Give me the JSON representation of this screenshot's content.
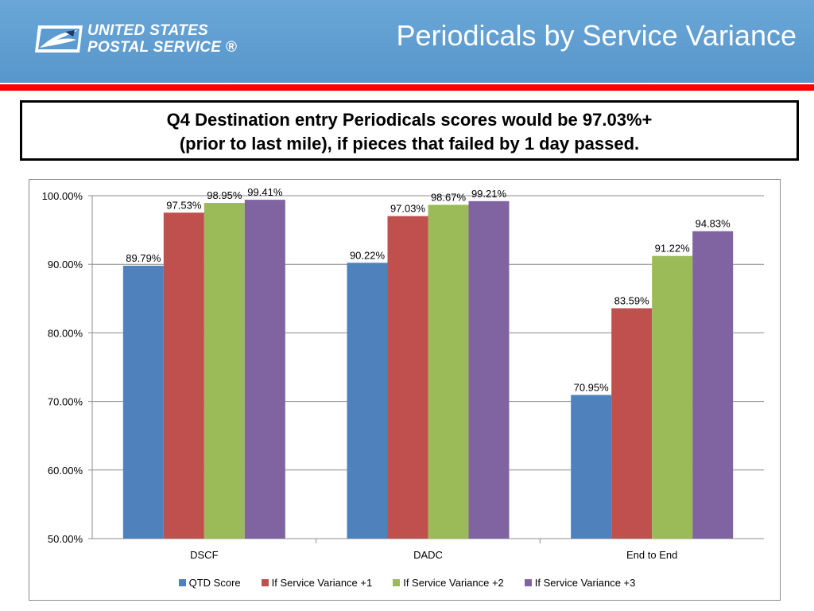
{
  "header": {
    "logo_line1": "UNITED STATES",
    "logo_line2": "POSTAL SERVICE ®",
    "title": "Periodicals by Service Variance",
    "logo_icon": "eagle-icon"
  },
  "callout": {
    "line1": "Q4 Destination entry Periodicals scores would be 97.03%+",
    "line2": "(prior to last mile), if pieces that failed by 1 day passed."
  },
  "colors": {
    "header_bg": "#5b9bd0",
    "accent_bar": "#ff0000"
  },
  "chart_data": {
    "type": "bar",
    "categories": [
      "DSCF",
      "DADC",
      "End to End"
    ],
    "series": [
      {
        "name": "QTD Score",
        "color": "#4f81bd",
        "values": [
          89.79,
          90.22,
          70.95
        ],
        "labels": [
          "89.79%",
          "90.22%",
          "70.95%"
        ]
      },
      {
        "name": "If Service Variance +1",
        "color": "#c0504d",
        "values": [
          97.53,
          97.03,
          83.59
        ],
        "labels": [
          "97.53%",
          "97.03%",
          "83.59%"
        ]
      },
      {
        "name": "If Service Variance +2",
        "color": "#9bbb59",
        "values": [
          98.95,
          98.67,
          91.22
        ],
        "labels": [
          "98.95%",
          "98.67%",
          "91.22%"
        ]
      },
      {
        "name": "If Service Variance +3",
        "color": "#8064a2",
        "values": [
          99.41,
          99.21,
          94.83
        ],
        "labels": [
          "99.41%",
          "99.21%",
          "94.83%"
        ]
      }
    ],
    "yticks": [
      "50.00%",
      "60.00%",
      "70.00%",
      "80.00%",
      "90.00%",
      "100.00%"
    ],
    "ylim": [
      50,
      100
    ],
    "grid": true,
    "legend": "bottom"
  }
}
